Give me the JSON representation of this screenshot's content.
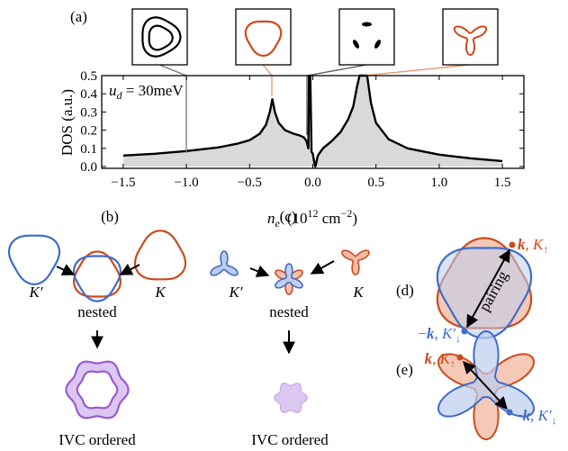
{
  "chart_data": {
    "type": "area",
    "panel_label": "(a)",
    "y_label": "DOS (a.u.)",
    "x_label": [
      "n",
      "e",
      "(10",
      "12",
      " cm",
      "−2",
      ")"
    ],
    "annotation": [
      "u",
      "d",
      " = 30meV"
    ],
    "x": [
      -1.5,
      -1.25,
      -1.0,
      -0.75,
      -0.6,
      -0.5,
      -0.42,
      -0.37,
      -0.34,
      -0.32,
      -0.3,
      -0.27,
      -0.22,
      -0.15,
      -0.1,
      -0.07,
      -0.05,
      -0.035,
      -0.03,
      -0.02,
      -0.01,
      0.0,
      0.01,
      0.02,
      0.04,
      0.08,
      0.15,
      0.22,
      0.28,
      0.32,
      0.35,
      0.37,
      0.43,
      0.46,
      0.5,
      0.6,
      0.75,
      1.0,
      1.25,
      1.5
    ],
    "values": [
      0.06,
      0.07,
      0.085,
      0.105,
      0.125,
      0.145,
      0.18,
      0.23,
      0.3,
      0.37,
      0.3,
      0.24,
      0.2,
      0.18,
      0.17,
      0.16,
      0.14,
      0.1,
      0.5,
      0.5,
      0.08,
      0.07,
      0.03,
      0.0,
      0.06,
      0.1,
      0.14,
      0.19,
      0.26,
      0.33,
      0.44,
      0.5,
      0.5,
      0.35,
      0.24,
      0.15,
      0.1,
      0.065,
      0.045,
      0.03
    ],
    "color": "#d9d9d9",
    "line_color": "#000000",
    "xlim": [
      -1.67,
      1.67
    ],
    "ylim": [
      -0.01,
      0.5
    ],
    "xticks": [
      {
        "value": -1.5,
        "label": "−1.5"
      },
      {
        "value": -1.0,
        "label": "−1.0"
      },
      {
        "value": -0.5,
        "label": "−0.5"
      },
      {
        "value": 0,
        "label": "0.0"
      },
      0.5,
      {
        "value": 1.0,
        "label": "1.0"
      },
      1.5
    ],
    "yticks": [
      {
        "value": 0,
        "label": "0.0"
      },
      0.1,
      0.2,
      0.3,
      0.4,
      0.5
    ]
  },
  "diagrams": {
    "b": {
      "label": "(b)",
      "left": "K′",
      "right": "K",
      "middle": "nested",
      "bottom": "IVC ordered"
    },
    "c": {
      "label": "(c)",
      "left": "K′",
      "right": "K",
      "middle": "nested",
      "bottom": "IVC ordered"
    },
    "d": {
      "label": "(d)",
      "arrow": "pairing",
      "start": [
        "k",
        ", K",
        "↑"
      ],
      "end": [
        "−",
        "k",
        ", K′",
        "↓"
      ]
    },
    "e": {
      "label": "(e)",
      "start": [
        "k",
        ", K",
        "↑"
      ],
      "end": [
        "−",
        "k",
        ", K′",
        "↓"
      ]
    }
  }
}
